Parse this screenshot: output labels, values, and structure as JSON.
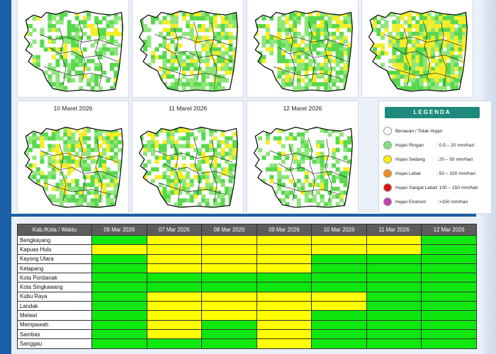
{
  "maps": {
    "top_row": [
      {
        "date": "",
        "intensity": 0.25
      },
      {
        "date": "",
        "intensity": 0.55
      },
      {
        "date": "",
        "intensity": 0.6
      },
      {
        "date": "",
        "intensity": 0.9
      }
    ],
    "bottom_row": [
      {
        "date": "10 Maret 2026",
        "intensity": 0.55
      },
      {
        "date": "11 Maret 2026",
        "intensity": 0.45
      },
      {
        "date": "12 Maret 2026",
        "intensity": 0.2
      }
    ]
  },
  "legend": {
    "title": "LEGENDA",
    "items": [
      {
        "label": "Berawan / Tidak Hujan",
        "range": "",
        "color": "#ffffff"
      },
      {
        "label": "Hujan Ringan",
        "range": ": 0.5 – 20 mm/hari",
        "color": "#7ee37e"
      },
      {
        "label": "Hujan Sedang",
        "range": ": 20 – 50 mm/hari",
        "color": "#ffee00"
      },
      {
        "label": "Hujan Lebat",
        "range": ": 50 – 100 mm/hari",
        "color": "#f08c1e"
      },
      {
        "label": "Hujan Sangat Lebat",
        "range": ": 100 – 150 mm/hari",
        "color": "#e01010"
      },
      {
        "label": "Hujan Ekstrem",
        "range": ": >150 mm/hari",
        "color": "#c040b0"
      }
    ]
  },
  "table": {
    "header_first": "Kab./Kota / Waktu",
    "dates": [
      "06 Mar 2026",
      "07 Mar 2026",
      "08 Mar 2026",
      "09 Mar 2026",
      "10 Mar 2026",
      "11 Mar 2026",
      "12 Mar 2026"
    ],
    "rows": [
      {
        "name": "Bengkayang",
        "cells": [
          "G",
          "Y",
          "Y",
          "Y",
          "Y",
          "Y",
          "G"
        ]
      },
      {
        "name": "Kapuas Hulu",
        "cells": [
          "Y",
          "Y",
          "Y",
          "Y",
          "Y",
          "Y",
          "G"
        ]
      },
      {
        "name": "Kayong Utara",
        "cells": [
          "G",
          "Y",
          "Y",
          "Y",
          "G",
          "G",
          "G"
        ]
      },
      {
        "name": "Ketapang",
        "cells": [
          "G",
          "Y",
          "Y",
          "Y",
          "G",
          "G",
          "G"
        ]
      },
      {
        "name": "Kota Pontianak",
        "cells": [
          "G",
          "G",
          "G",
          "G",
          "G",
          "G",
          "G"
        ]
      },
      {
        "name": "Kota Singkawang",
        "cells": [
          "G",
          "G",
          "G",
          "G",
          "G",
          "G",
          "G"
        ]
      },
      {
        "name": "Kubu Raya",
        "cells": [
          "G",
          "Y",
          "Y",
          "Y",
          "Y",
          "G",
          "G"
        ]
      },
      {
        "name": "Landak",
        "cells": [
          "G",
          "Y",
          "Y",
          "Y",
          "Y",
          "G",
          "G"
        ]
      },
      {
        "name": "Melawi",
        "cells": [
          "G",
          "Y",
          "Y",
          "Y",
          "G",
          "G",
          "G"
        ]
      },
      {
        "name": "Mempawah",
        "cells": [
          "G",
          "Y",
          "G",
          "Y",
          "G",
          "G",
          "G"
        ]
      },
      {
        "name": "Sambas",
        "cells": [
          "G",
          "Y",
          "G",
          "Y",
          "G",
          "G",
          "G"
        ]
      },
      {
        "name": "Sanggau",
        "cells": [
          "G",
          "G",
          "G",
          "Y",
          "G",
          "G",
          "G"
        ]
      }
    ]
  },
  "colors": {
    "G": "#0ee80e",
    "Y": "#ffff00"
  }
}
